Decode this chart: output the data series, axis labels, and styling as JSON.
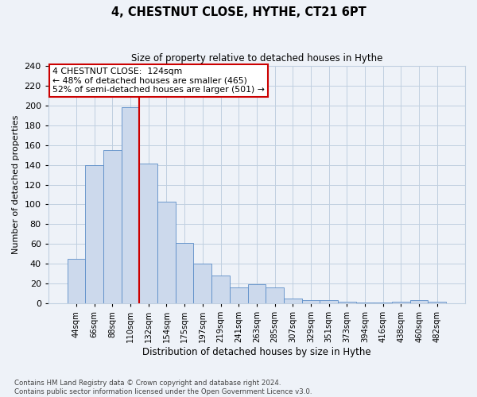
{
  "title": "4, CHESTNUT CLOSE, HYTHE, CT21 6PT",
  "subtitle": "Size of property relative to detached houses in Hythe",
  "xlabel": "Distribution of detached houses by size in Hythe",
  "ylabel": "Number of detached properties",
  "categories": [
    "44sqm",
    "66sqm",
    "88sqm",
    "110sqm",
    "132sqm",
    "154sqm",
    "175sqm",
    "197sqm",
    "219sqm",
    "241sqm",
    "263sqm",
    "285sqm",
    "307sqm",
    "329sqm",
    "351sqm",
    "373sqm",
    "394sqm",
    "416sqm",
    "438sqm",
    "460sqm",
    "482sqm"
  ],
  "values": [
    45,
    140,
    155,
    198,
    141,
    103,
    61,
    40,
    28,
    16,
    19,
    16,
    5,
    3,
    3,
    2,
    1,
    1,
    2,
    3,
    2
  ],
  "bar_color": "#ccd9ec",
  "bar_edge_color": "#5b8dc8",
  "highlight_index": 4,
  "highlight_line_color": "#cc0000",
  "annotation_text": "4 CHESTNUT CLOSE:  124sqm\n← 48% of detached houses are smaller (465)\n52% of semi-detached houses are larger (501) →",
  "annotation_box_color": "#ffffff",
  "annotation_box_edge": "#cc0000",
  "ylim": [
    0,
    240
  ],
  "yticks": [
    0,
    20,
    40,
    60,
    80,
    100,
    120,
    140,
    160,
    180,
    200,
    220,
    240
  ],
  "footer": "Contains HM Land Registry data © Crown copyright and database right 2024.\nContains public sector information licensed under the Open Government Licence v3.0.",
  "bg_color": "#eef2f8",
  "plot_bg_color": "#eef2f8",
  "grid_color": "#c0cfe0"
}
